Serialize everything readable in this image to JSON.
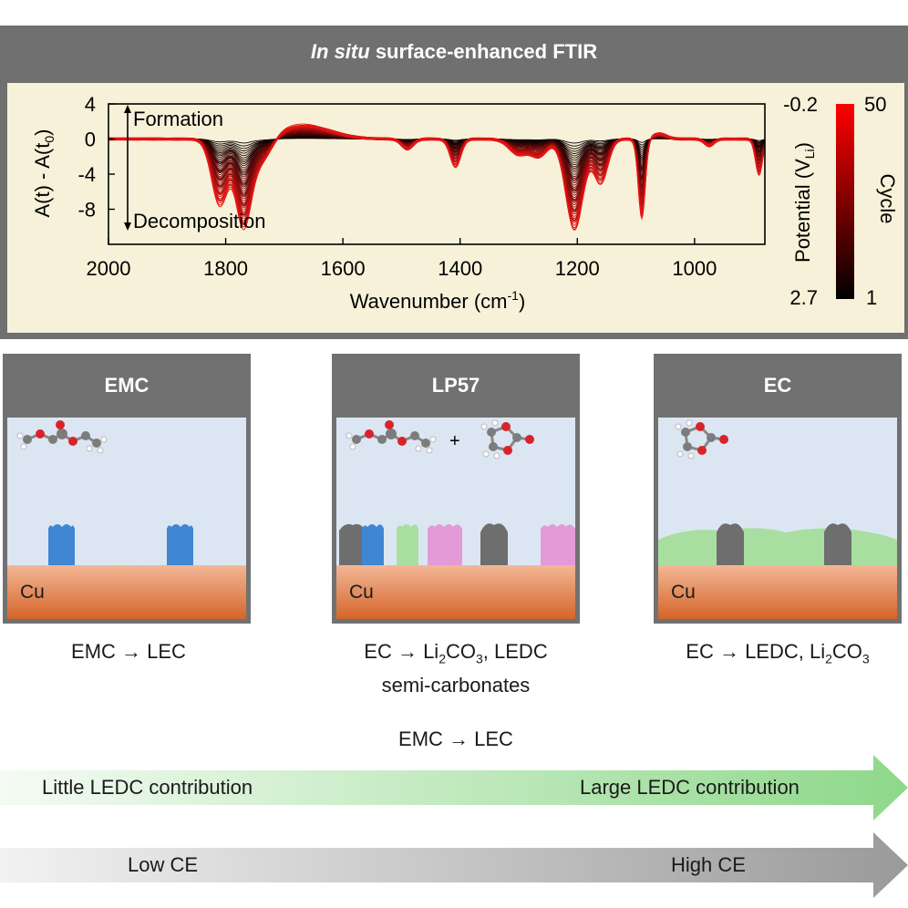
{
  "header": {
    "title_italic": "In situ",
    "title_rest": "surface-enhanced FTIR"
  },
  "chart_data": {
    "type": "line",
    "title": "In situ surface-enhanced FTIR",
    "xlabel": "Wavenumber (cm-1)",
    "ylabel": "A(t) - A(t0)",
    "xlim": [
      2000,
      880
    ],
    "ylim": [
      -12,
      4
    ],
    "xticks": [
      2000,
      1800,
      1600,
      1400,
      1200,
      1000
    ],
    "yticks": [
      4,
      0,
      -4,
      -8
    ],
    "annotations": {
      "up": "Formation",
      "down": "Decomposition"
    },
    "colorbar": {
      "left_label": "Potential (V",
      "left_label_sub": "Li",
      "left_label_end": ")",
      "right_label": "Cycle",
      "left_top": "-0.2",
      "left_bottom": "2.7",
      "right_top": "50",
      "right_bottom": "1",
      "colors": [
        "#000000",
        "#ff0000"
      ]
    },
    "cycles": 50,
    "peaks": [
      {
        "center": 1810,
        "width": 14,
        "amp": -7.5
      },
      {
        "center": 1770,
        "width": 13,
        "amp": -9.5
      },
      {
        "center": 1740,
        "width": 18,
        "amp": -3.0
      },
      {
        "center": 1665,
        "width": 45,
        "amp": 1.6
      },
      {
        "center": 1490,
        "width": 10,
        "amp": -1.2
      },
      {
        "center": 1408,
        "width": 9,
        "amp": -3.2
      },
      {
        "center": 1300,
        "width": 16,
        "amp": -1.8
      },
      {
        "center": 1265,
        "width": 14,
        "amp": -2.0
      },
      {
        "center": 1205,
        "width": 15,
        "amp": -10.5
      },
      {
        "center": 1160,
        "width": 12,
        "amp": -5.0
      },
      {
        "center": 1090,
        "width": 6,
        "amp": -9.0
      },
      {
        "center": 1060,
        "width": 12,
        "amp": 0.6
      },
      {
        "center": 975,
        "width": 8,
        "amp": -0.8
      },
      {
        "center": 890,
        "width": 6,
        "amp": -4.0
      }
    ]
  },
  "panels": [
    {
      "title": "EMC",
      "cu": "Cu"
    },
    {
      "title": "LP57",
      "cu": "Cu",
      "plus": "+"
    },
    {
      "title": "EC",
      "cu": "Cu"
    }
  ],
  "captions": {
    "emc": "EMC → LEC",
    "lp57_line1_a": "EC → Li",
    "lp57_line1_sub1": "2",
    "lp57_line1_b": "CO",
    "lp57_line1_sub2": "3",
    "lp57_line1_c": ", LEDC",
    "lp57_line2": "semi-carbonates",
    "ec_a": "EC → LEDC, Li",
    "ec_sub1": "2",
    "ec_b": "CO",
    "ec_sub2": "3"
  },
  "middle_text": "EMC → LEC",
  "arrows": {
    "ledc_left": "Little LEDC contribution",
    "ledc_right": "Large LEDC contribution",
    "ce_left": "Low CE",
    "ce_right": "High CE",
    "green": "#8ed88a",
    "gray": "#9a9a9a"
  }
}
